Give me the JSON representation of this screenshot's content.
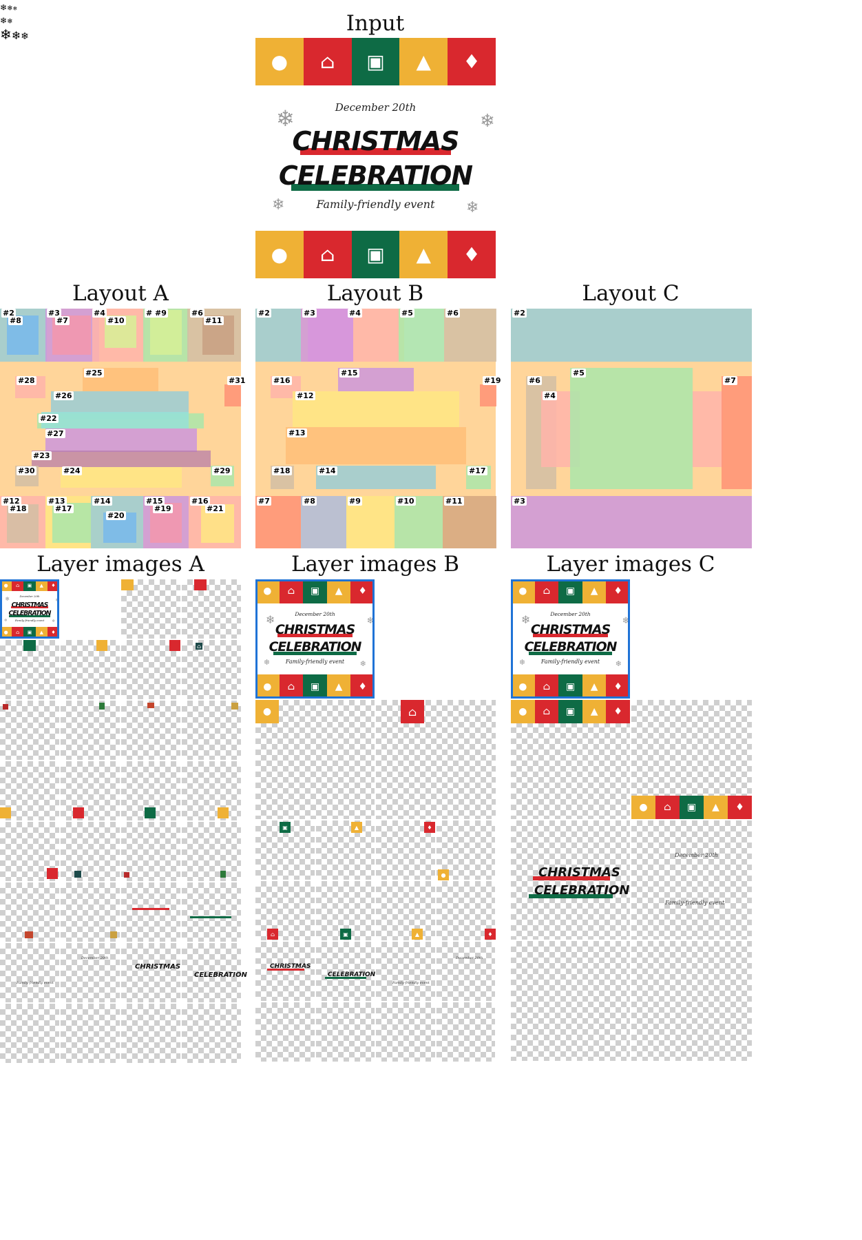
{
  "titles": {
    "input": "Input",
    "layout_a": "Layout A",
    "layout_b": "Layout B",
    "layout_c": "Layout C",
    "layers_a": "Layer images A",
    "layers_b": "Layer images B",
    "layers_c": "Layer images C"
  },
  "poster": {
    "date": "December 20th",
    "word1": "CHRISTMAS",
    "word2": "CELEBRATION",
    "subtitle": "Family-friendly event",
    "tiles": [
      {
        "icon": "ornament-icon",
        "color": "#efb135",
        "glyph": "●"
      },
      {
        "icon": "house-icon",
        "color": "#d9282e",
        "glyph": "⌂"
      },
      {
        "icon": "gift-icon",
        "color": "#0e6b45",
        "glyph": "▣"
      },
      {
        "icon": "tree-icon",
        "color": "#efb135",
        "glyph": "▲"
      },
      {
        "icon": "bell-icon",
        "color": "#d9282e",
        "glyph": "♦"
      }
    ],
    "colors": {
      "red_bar": "#d9282e",
      "green_bar": "#0e6b45"
    }
  },
  "layout_a_labels": [
    "#2",
    "#8",
    "#3",
    "#7",
    "#4",
    "#10",
    "# #9",
    "#6",
    "#11",
    "#28",
    "#25",
    "#31",
    "#26",
    "#22",
    "#27",
    "#23",
    "#30",
    "#24",
    "#29",
    "#12",
    "#18",
    "#13",
    "#17",
    "#14",
    "#20",
    "#15",
    "#19",
    "#16",
    "#21"
  ],
  "layout_b_labels": [
    "#2",
    "#3",
    "#4",
    "#5",
    "#6",
    "#16",
    "#15",
    "#19",
    "#12",
    "#13",
    "#18",
    "#14",
    "#17",
    "#7",
    "#8",
    "#9",
    "#10",
    "#11"
  ],
  "layout_c_labels": [
    "#2",
    "#6",
    "#5",
    "#7",
    "#4",
    "#3"
  ],
  "thumb_texts": {
    "christmas": "CHRISTMAS",
    "celebration": "CELEBRATION",
    "date": "December 20th",
    "subtitle": "Family-friendly event"
  }
}
